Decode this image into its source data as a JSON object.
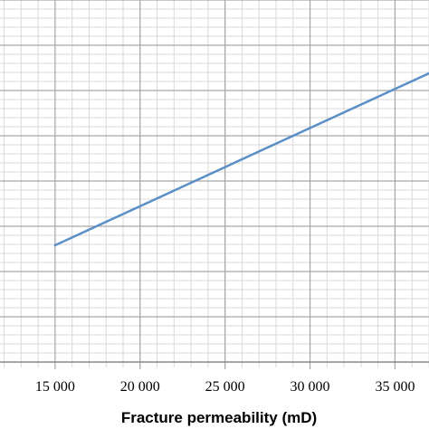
{
  "chart_data": {
    "type": "line",
    "title": "",
    "xlabel": "Fracture permeability (mD)",
    "ylabel": "",
    "xlim": [
      10000,
      37000
    ],
    "x_ticks": [
      10000,
      15000,
      20000,
      25000,
      30000,
      35000
    ],
    "x_tick_labels": [
      "",
      "15 000",
      "20 000",
      "25 000",
      "30 000",
      "35 000"
    ],
    "x_minor_step": 1000,
    "ylim": [
      0,
      400
    ],
    "y_minor_step": 10,
    "y_major_step": 50,
    "grid": true,
    "series": [
      {
        "color": "#5B8FC7",
        "x": [
          15000,
          37000
        ],
        "y": [
          129,
          319
        ]
      }
    ],
    "colors": {
      "grid_minor": "#d9d9d9",
      "grid_major": "#a6a6a6",
      "axis": "#7f7f7f"
    }
  }
}
